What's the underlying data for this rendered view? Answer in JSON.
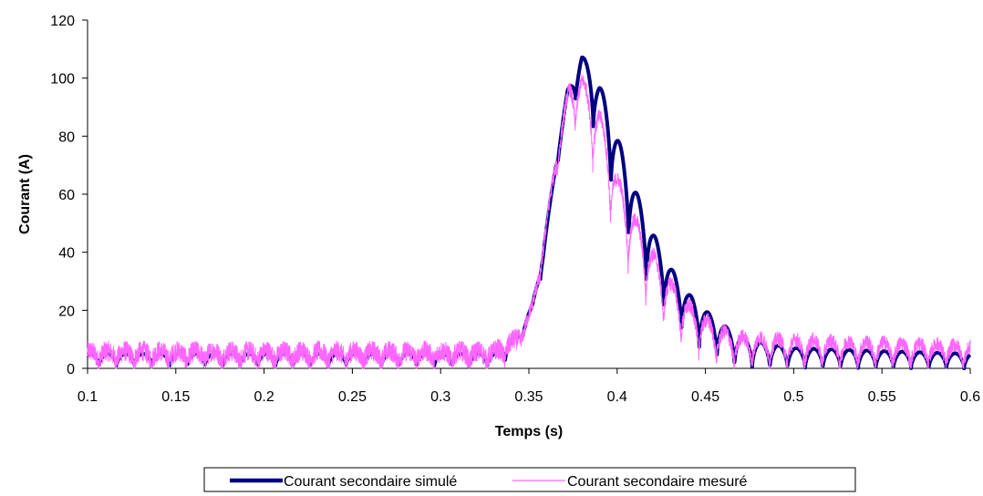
{
  "chart_data": {
    "type": "line",
    "title": "",
    "xlabel": "Temps (s)",
    "ylabel": "Courant (A)",
    "xlim": [
      0.1,
      0.6
    ],
    "ylim": [
      0,
      120
    ],
    "x_ticks": [
      "0.1",
      "0.15",
      "0.2",
      "0.25",
      "0.3",
      "0.35",
      "0.4",
      "0.45",
      "0.5",
      "0.55",
      "0.6"
    ],
    "y_ticks": [
      "0",
      "20",
      "40",
      "60",
      "80",
      "100",
      "120"
    ],
    "grid": false,
    "legend_position": "bottom",
    "series": [
      {
        "name": "Courant secondaire simulé",
        "color": "#000080",
        "style": "thick",
        "envelope": [
          [
            0.1,
            5
          ],
          [
            0.33,
            5
          ],
          [
            0.338,
            9
          ],
          [
            0.345,
            12
          ],
          [
            0.352,
            22
          ],
          [
            0.358,
            40
          ],
          [
            0.365,
            70
          ],
          [
            0.372,
            96
          ],
          [
            0.38,
            108
          ],
          [
            0.39,
            98
          ],
          [
            0.4,
            80
          ],
          [
            0.41,
            62
          ],
          [
            0.42,
            47
          ],
          [
            0.43,
            35
          ],
          [
            0.44,
            26
          ],
          [
            0.45,
            20
          ],
          [
            0.46,
            15
          ],
          [
            0.47,
            11
          ],
          [
            0.48,
            9
          ],
          [
            0.5,
            7
          ],
          [
            0.6,
            5
          ]
        ],
        "trough_ratio": [
          [
            0.1,
            0.2
          ],
          [
            0.335,
            0.2
          ],
          [
            0.345,
            0.75
          ],
          [
            0.365,
            0.95
          ],
          [
            0.38,
            0.88
          ],
          [
            0.4,
            0.7
          ],
          [
            0.43,
            0.5
          ],
          [
            0.45,
            0.3
          ],
          [
            0.47,
            0.05
          ],
          [
            0.6,
            0.0
          ]
        ]
      },
      {
        "name": "Courant secondaire mesuré",
        "color": "#ff66ff",
        "style": "thin",
        "envelope": [
          [
            0.1,
            6
          ],
          [
            0.33,
            6
          ],
          [
            0.338,
            9
          ],
          [
            0.345,
            11
          ],
          [
            0.352,
            22
          ],
          [
            0.358,
            42
          ],
          [
            0.365,
            72
          ],
          [
            0.373,
            98
          ],
          [
            0.38,
            100
          ],
          [
            0.39,
            88
          ],
          [
            0.4,
            66
          ],
          [
            0.41,
            52
          ],
          [
            0.42,
            40
          ],
          [
            0.43,
            30
          ],
          [
            0.44,
            22
          ],
          [
            0.45,
            17
          ],
          [
            0.46,
            13
          ],
          [
            0.47,
            11
          ],
          [
            0.5,
            10
          ],
          [
            0.6,
            8
          ]
        ],
        "trough_ratio": [
          [
            0.1,
            0.25
          ],
          [
            0.335,
            0.25
          ],
          [
            0.345,
            0.75
          ],
          [
            0.365,
            0.9
          ],
          [
            0.38,
            0.8
          ],
          [
            0.4,
            0.65
          ],
          [
            0.43,
            0.4
          ],
          [
            0.45,
            0.2
          ],
          [
            0.465,
            0.0
          ],
          [
            0.6,
            0.0
          ]
        ],
        "noise_amplitude": 2.5
      }
    ]
  }
}
